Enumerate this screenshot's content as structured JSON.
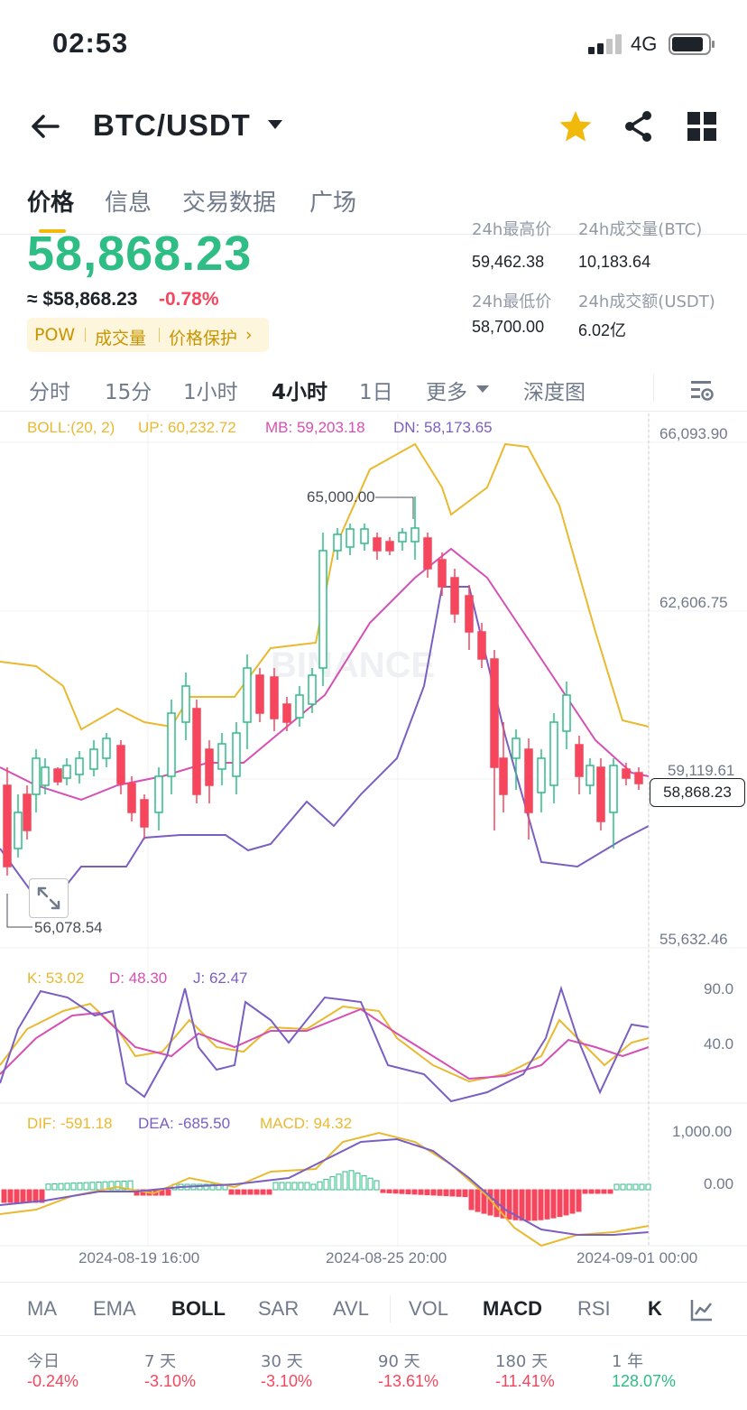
{
  "status_bar": {
    "time": "02:53",
    "network": "4G"
  },
  "header": {
    "pair": "BTC/USDT"
  },
  "tabs": [
    "价格",
    "信息",
    "交易数据",
    "广场"
  ],
  "ticker": {
    "price": "58,868.23",
    "usd_price": "≈ $58,868.23",
    "change": "-0.78%",
    "chips": [
      "POW",
      "成交量",
      "价格保护"
    ],
    "high_label": "24h最高价",
    "high_value": "59,462.38",
    "vol_btc_label": "24h成交量(BTC)",
    "vol_btc_value": "10,183.64",
    "low_label": "24h最低价",
    "low_value": "58,700.00",
    "vol_usdt_label": "24h成交额(USDT)",
    "vol_usdt_value": "6.02亿"
  },
  "intervals": [
    "分时",
    "15分",
    "1小时",
    "4小时",
    "1日",
    "更多",
    "深度图"
  ],
  "boll_legend": {
    "name": "BOLL:(20, 2)",
    "up": "UP: 60,232.72",
    "mb": "MB: 59,203.18",
    "dn": "DN: 58,173.65"
  },
  "kdj_legend": {
    "k": "K: 53.02",
    "d": "D: 48.30",
    "j": "J: 62.47"
  },
  "macd_legend": {
    "dif": "DIF: -591.18",
    "dea": "DEA: -685.50",
    "macd": "MACD: 94.32"
  },
  "chart_data": {
    "type": "candlestick",
    "watermark": "BINANCE",
    "price_axis": [
      "66,093.90",
      "62,606.75",
      "59,119.61",
      "55,632.46"
    ],
    "current_price": "58,868.23",
    "high_marker": "65,000.00",
    "low_marker": "56,078.54",
    "kdj_axis": [
      "90.0",
      "40.0"
    ],
    "macd_axis": [
      "1,000.00",
      "0.00"
    ],
    "dates": [
      "2024-08-19 16:00",
      "2024-08-25 20:00",
      "2024-09-01 00:00"
    ],
    "colors": {
      "up": "#2ebd85",
      "down": "#f6465d",
      "yellow": "#e9b930",
      "pink": "#d64fb4",
      "purple": "#7a5ec2"
    }
  },
  "indicators": [
    "MA",
    "EMA",
    "BOLL",
    "SAR",
    "AVL",
    "VOL",
    "MACD",
    "RSI",
    "K"
  ],
  "performance": [
    {
      "label": "今日",
      "value": "-0.24%"
    },
    {
      "label": "7 天",
      "value": "-3.10%"
    },
    {
      "label": "30 天",
      "value": "-3.10%"
    },
    {
      "label": "90 天",
      "value": "-13.61%"
    },
    {
      "label": "180 天",
      "value": "-11.41%"
    },
    {
      "label": "1 年",
      "value": "128.07%"
    }
  ]
}
